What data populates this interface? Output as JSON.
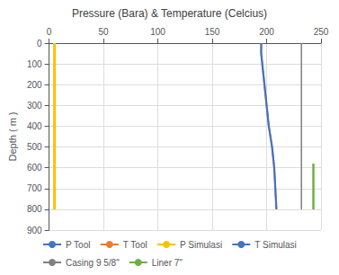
{
  "chart_data": {
    "type": "line",
    "title": "Pressure (Bara) & Temperature (Celcius)",
    "ylabel": "Depth ( m )",
    "xlim": [
      0,
      250
    ],
    "ylim": [
      900,
      0
    ],
    "xticks": [
      0,
      50,
      100,
      150,
      200,
      250
    ],
    "yticks": [
      0,
      100,
      200,
      300,
      400,
      500,
      600,
      700,
      800,
      900
    ],
    "grid": true,
    "legend": "bottom",
    "series": [
      {
        "name": "P Tool",
        "color": "#4472C4",
        "x": [
          5,
          5,
          5,
          5,
          5,
          5,
          5,
          5,
          5
        ],
        "values": [
          0,
          100,
          200,
          300,
          400,
          500,
          600,
          700,
          800
        ]
      },
      {
        "name": "T Tool",
        "color": "#ED7D31",
        "x": [
          195,
          195,
          196,
          197,
          198,
          200,
          202,
          205,
          207,
          209
        ],
        "values": [
          0,
          50,
          100,
          150,
          200,
          300,
          400,
          500,
          600,
          800
        ]
      },
      {
        "name": "P Simulasi",
        "color": "#FFC000",
        "x": [
          5,
          5,
          5,
          5,
          5,
          5,
          5,
          5,
          5
        ],
        "values": [
          0,
          100,
          200,
          300,
          400,
          500,
          600,
          700,
          800
        ]
      },
      {
        "name": "T Simulasi",
        "color": "#4472C4",
        "x": [
          195,
          195,
          196,
          197,
          198,
          200,
          202,
          205,
          207,
          209
        ],
        "values": [
          0,
          50,
          100,
          150,
          200,
          300,
          400,
          500,
          600,
          800
        ]
      },
      {
        "name": "Casing 9 5/8\"",
        "color": "#808080",
        "x": [
          232,
          232
        ],
        "values": [
          0,
          800
        ]
      },
      {
        "name": "Liner 7\"",
        "color": "#70AD47",
        "x": [
          243,
          243
        ],
        "values": [
          580,
          800
        ]
      }
    ]
  }
}
